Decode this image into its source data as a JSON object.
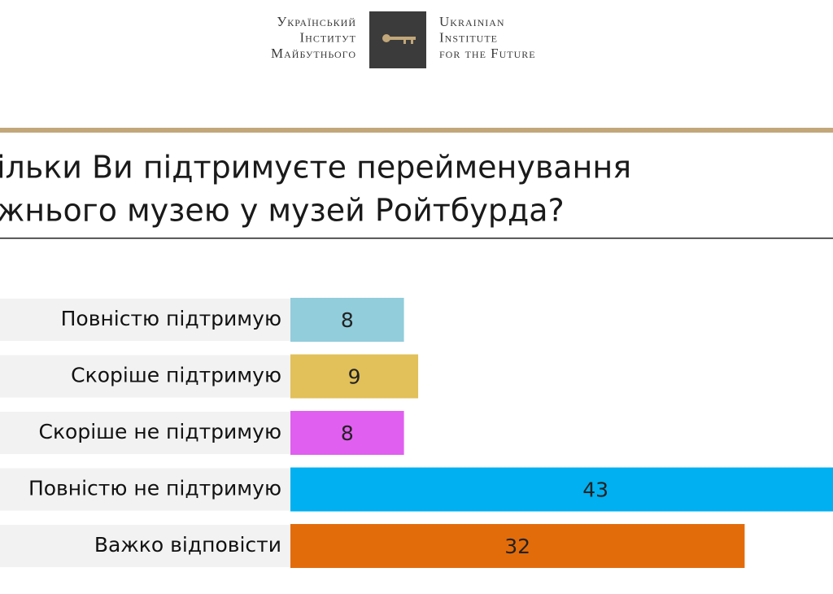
{
  "logo": {
    "ua_lines": [
      "Український",
      "Інститут",
      "Майбутнього"
    ],
    "en_lines": [
      "Ukrainian",
      "Institute",
      "for the Future"
    ]
  },
  "chart_data": {
    "type": "bar",
    "title": [
      "ільки Ви підтримуєте перейменування",
      "жнього музею у музей Ройтбурда?"
    ],
    "categories": [
      "Повністю підтримую",
      "Скоріше підтримую",
      "Скоріше не підтримую",
      "Повністю не підтримую",
      "Важко відповісти"
    ],
    "values": [
      8,
      9,
      8,
      43,
      32
    ],
    "colors": [
      "#92cddc",
      "#e2c05a",
      "#e15ff0",
      "#00b0f0",
      "#e36c0a"
    ]
  }
}
